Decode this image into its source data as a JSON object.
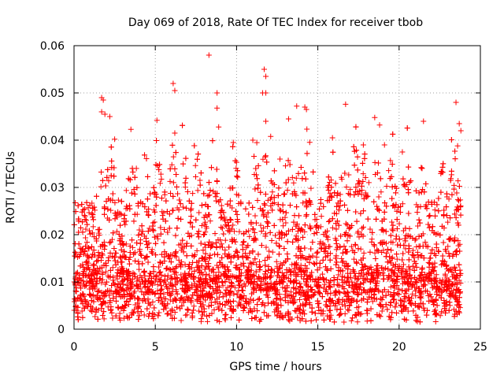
{
  "chart_data": {
    "type": "scatter",
    "title": "Day 069 of 2018, Rate Of TEC Index for receiver tbob",
    "xlabel": "GPS time / hours",
    "ylabel": "ROTI / TECUs",
    "xlim": [
      0,
      25
    ],
    "ylim": [
      0,
      0.06
    ],
    "xticks": [
      "0",
      "5",
      "10",
      "15",
      "20",
      "25"
    ],
    "yticks": [
      "0",
      "0.01",
      "0.02",
      "0.03",
      "0.04",
      "0.05",
      "0.06"
    ],
    "grid": true,
    "marker": "+",
    "series_color": "#ff0000",
    "baseline_range": [
      0.003,
      0.015
    ],
    "x_extent": [
      0,
      23.8
    ],
    "peak_points": [
      {
        "x": 8.3,
        "y": 0.058
      },
      {
        "x": 11.7,
        "y": 0.055
      },
      {
        "x": 11.8,
        "y": 0.0535
      },
      {
        "x": 6.1,
        "y": 0.052
      },
      {
        "x": 6.2,
        "y": 0.0505
      },
      {
        "x": 8.8,
        "y": 0.05
      },
      {
        "x": 11.6,
        "y": 0.05
      },
      {
        "x": 11.8,
        "y": 0.05
      },
      {
        "x": 1.7,
        "y": 0.049
      },
      {
        "x": 1.8,
        "y": 0.0485
      },
      {
        "x": 23.5,
        "y": 0.048
      },
      {
        "x": 13.7,
        "y": 0.0472
      },
      {
        "x": 14.2,
        "y": 0.047
      },
      {
        "x": 14.3,
        "y": 0.0465
      },
      {
        "x": 8.8,
        "y": 0.0468
      },
      {
        "x": 1.7,
        "y": 0.046
      },
      {
        "x": 1.9,
        "y": 0.0455
      },
      {
        "x": 2.2,
        "y": 0.045
      },
      {
        "x": 18.5,
        "y": 0.0448
      },
      {
        "x": 5.1,
        "y": 0.0442
      },
      {
        "x": 11.8,
        "y": 0.044
      },
      {
        "x": 21.5,
        "y": 0.044
      },
      {
        "x": 13.2,
        "y": 0.0445
      },
      {
        "x": 23.7,
        "y": 0.0435
      },
      {
        "x": 18.8,
        "y": 0.0432
      },
      {
        "x": 8.9,
        "y": 0.0428
      },
      {
        "x": 3.5,
        "y": 0.0423
      },
      {
        "x": 23.8,
        "y": 0.042
      },
      {
        "x": 6.2,
        "y": 0.0415
      },
      {
        "x": 12.1,
        "y": 0.0408
      },
      {
        "x": 2.5,
        "y": 0.0402
      },
      {
        "x": 11.0,
        "y": 0.04
      },
      {
        "x": 15.9,
        "y": 0.0405
      },
      {
        "x": 17.8,
        "y": 0.039
      },
      {
        "x": 9.8,
        "y": 0.0395
      },
      {
        "x": 19.1,
        "y": 0.039
      },
      {
        "x": 23.6,
        "y": 0.0388
      },
      {
        "x": 20.2,
        "y": 0.0375
      }
    ]
  }
}
